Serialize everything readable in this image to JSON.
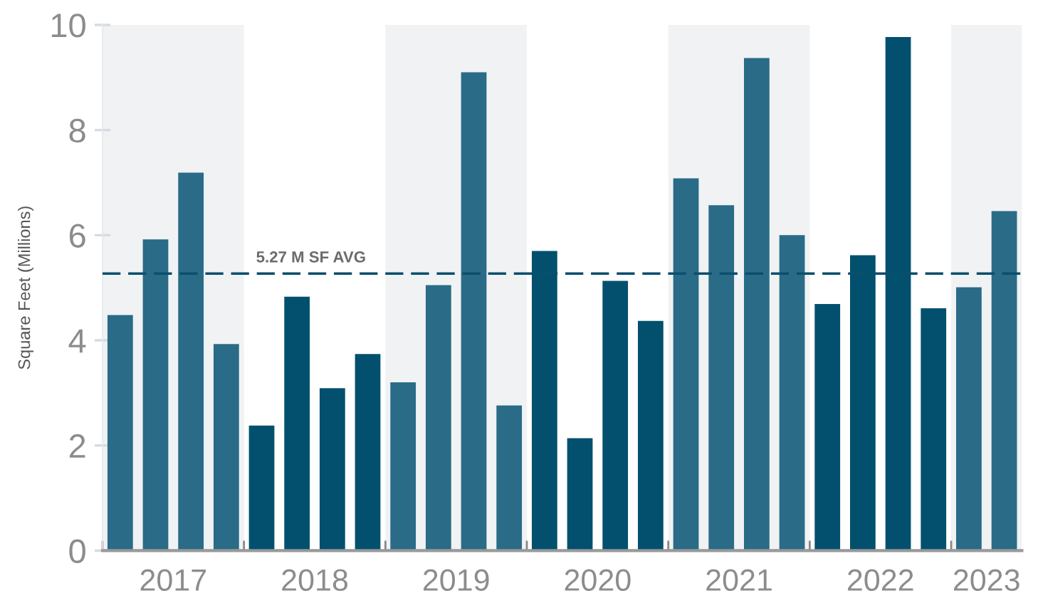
{
  "chart_data": {
    "type": "bar",
    "ylabel": "Square Feet (Millions)",
    "x": [
      2017.125,
      2017.375,
      2017.625,
      2017.875,
      2018.125,
      2018.375,
      2018.625,
      2018.875,
      2019.125,
      2019.375,
      2019.625,
      2019.875,
      2020.125,
      2020.375,
      2020.625,
      2020.875,
      2021.125,
      2021.375,
      2021.625,
      2021.875,
      2022.125,
      2022.375,
      2022.625,
      2022.875,
      2023.125,
      2023.375
    ],
    "values": [
      4.48,
      5.92,
      7.19,
      3.93,
      2.38,
      4.83,
      3.09,
      3.74,
      3.2,
      5.05,
      9.1,
      2.76,
      5.7,
      2.14,
      5.13,
      4.37,
      7.08,
      6.57,
      9.37,
      6.0,
      4.69,
      5.62,
      9.77,
      4.61,
      5.01,
      6.46
    ],
    "colors": [
      "#2a6b87",
      "#2a6b87",
      "#2a6b87",
      "#2a6b87",
      "#02506e",
      "#02506e",
      "#02506e",
      "#02506e",
      "#2a6b87",
      "#2a6b87",
      "#2a6b87",
      "#2a6b87",
      "#02506e",
      "#02506e",
      "#02506e",
      "#02506e",
      "#2a6b87",
      "#2a6b87",
      "#2a6b87",
      "#2a6b87",
      "#02506e",
      "#02506e",
      "#02506e",
      "#02506e",
      "#2a6b87",
      "#2a6b87"
    ],
    "xlim": [
      2017,
      2023.5
    ],
    "xticks": [
      {
        "value": 2017,
        "label": null
      },
      {
        "value": 2017.5,
        "label": "2017"
      },
      {
        "value": 2018,
        "label": null
      },
      {
        "value": 2018.5,
        "label": "2018"
      },
      {
        "value": 2019,
        "label": null
      },
      {
        "value": 2019.5,
        "label": "2019"
      },
      {
        "value": 2020,
        "label": null
      },
      {
        "value": 2020.5,
        "label": "2020"
      },
      {
        "value": 2021,
        "label": null
      },
      {
        "value": 2021.5,
        "label": "2021"
      },
      {
        "value": 2022,
        "label": null
      },
      {
        "value": 2022.5,
        "label": "2022"
      },
      {
        "value": 2023,
        "label": null
      },
      {
        "value": 2023.25,
        "label": "2023"
      }
    ],
    "ylim": [
      0,
      10
    ],
    "yticks": [
      0,
      2,
      4,
      6,
      8,
      10
    ],
    "ref_lines": [
      {
        "axis": "y",
        "value": 5.27,
        "label": "5.27 M SF AVG",
        "color": "#0b4f6c",
        "line_style": "dashed"
      }
    ],
    "bands": [
      {
        "axis": "x",
        "from": 2017,
        "to": 2018,
        "color": "#f0f2f4"
      },
      {
        "axis": "x",
        "from": 2019,
        "to": 2020,
        "color": "#f0f2f4"
      },
      {
        "axis": "x",
        "from": 2021,
        "to": 2022,
        "color": "#f0f2f4"
      },
      {
        "axis": "x",
        "from": 2023,
        "to": 2023.5,
        "color": "#f0f2f4"
      }
    ]
  }
}
